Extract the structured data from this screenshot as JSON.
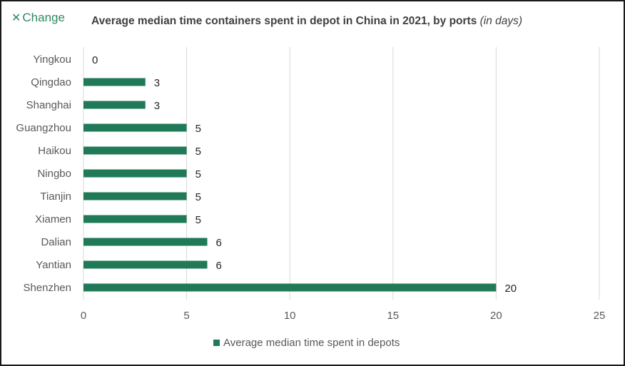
{
  "brand": {
    "name": "Change",
    "mark": "✕"
  },
  "title": "Average median time containers spent in depot in China in 2021, by ports",
  "title_unit": "(in days)",
  "colors": {
    "bar": "#217a57",
    "grid": "#d9d9d9",
    "text": "#404040",
    "tick": "#595959"
  },
  "chart_data": {
    "type": "bar",
    "orientation": "horizontal",
    "title": "Average median time containers spent in depot in China in 2021, by ports (in days)",
    "categories": [
      "Yingkou",
      "Qingdao",
      "Shanghai",
      "Guangzhou",
      "Haikou",
      "Ningbo",
      "Tianjin",
      "Xiamen",
      "Dalian",
      "Yantian",
      "Shenzhen"
    ],
    "series": [
      {
        "name": "Average median time spent in depots",
        "values": [
          0,
          3,
          3,
          5,
          5,
          5,
          5,
          5,
          6,
          6,
          20
        ]
      }
    ],
    "xlim": [
      0,
      25
    ],
    "xticks": [
      0,
      5,
      10,
      15,
      20,
      25
    ],
    "grid": true,
    "data_labels": true,
    "legend_position": "bottom"
  }
}
